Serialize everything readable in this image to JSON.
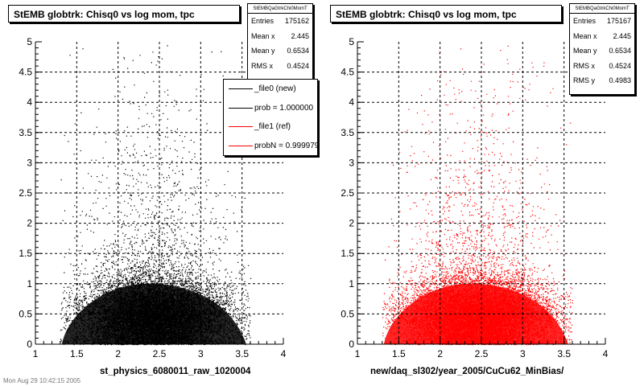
{
  "footer_text": "Mon Aug 29 10:42:15 2005",
  "chart_data": [
    {
      "type": "scatter",
      "title": "StEMB globtrk: Chisq0 vs log mom, tpc",
      "xlabel": "st_physics_6080011_raw_1020004",
      "ylabel": "",
      "xlim": [
        1,
        4
      ],
      "ylim": [
        0,
        5
      ],
      "x_ticks": [
        "1",
        "1.5",
        "2",
        "2.5",
        "3",
        "3.5",
        "4"
      ],
      "y_ticks": [
        "0",
        "0.5",
        "1",
        "1.5",
        "2",
        "2.5",
        "3",
        "3.5",
        "4",
        "4.5",
        "5"
      ],
      "grid": true,
      "marker_color": "#000000",
      "stats": {
        "name": "StEMBQaGtrkChi0MomT",
        "rows": [
          {
            "label": "Entries",
            "value": "175162"
          },
          {
            "label": "Mean x",
            "value": "2.445"
          },
          {
            "label": "Mean y",
            "value": "0.6534"
          },
          {
            "label": "RMS x",
            "value": "0.4524"
          }
        ]
      },
      "legend": {
        "placement": "right",
        "entries": [
          {
            "text": "_file0 (new)",
            "color": "#000000"
          },
          {
            "text": "prob = 1.000000",
            "color": "#000000"
          },
          {
            "text": "_file1 (ref)",
            "color": "#ff0000"
          },
          {
            "text": "probN = 0.999979",
            "color": "#ff0000"
          }
        ]
      }
    },
    {
      "type": "scatter",
      "title": "StEMB globtrk: Chisq0 vs log mom, tpc",
      "xlabel": "new/daq_sl302/year_2005/CuCu62_MinBias/",
      "ylabel": "",
      "xlim": [
        1,
        4
      ],
      "ylim": [
        0,
        5
      ],
      "x_ticks": [
        "1",
        "1.5",
        "2",
        "2.5",
        "3",
        "3.5",
        "4"
      ],
      "y_ticks": [
        "0",
        "0.5",
        "1",
        "1.5",
        "2",
        "2.5",
        "3",
        "3.5",
        "4",
        "4.5",
        "5"
      ],
      "grid": true,
      "marker_color": "#ff0000",
      "stats": {
        "name": "StEMBQaGtrkChi0MomT",
        "rows": [
          {
            "label": "Entries",
            "value": "175167"
          },
          {
            "label": "Mean x",
            "value": "2.445"
          },
          {
            "label": "Mean y",
            "value": "0.6534"
          },
          {
            "label": "RMS x",
            "value": "0.4524"
          },
          {
            "label": "RMS y",
            "value": "0.4983"
          }
        ]
      }
    }
  ]
}
